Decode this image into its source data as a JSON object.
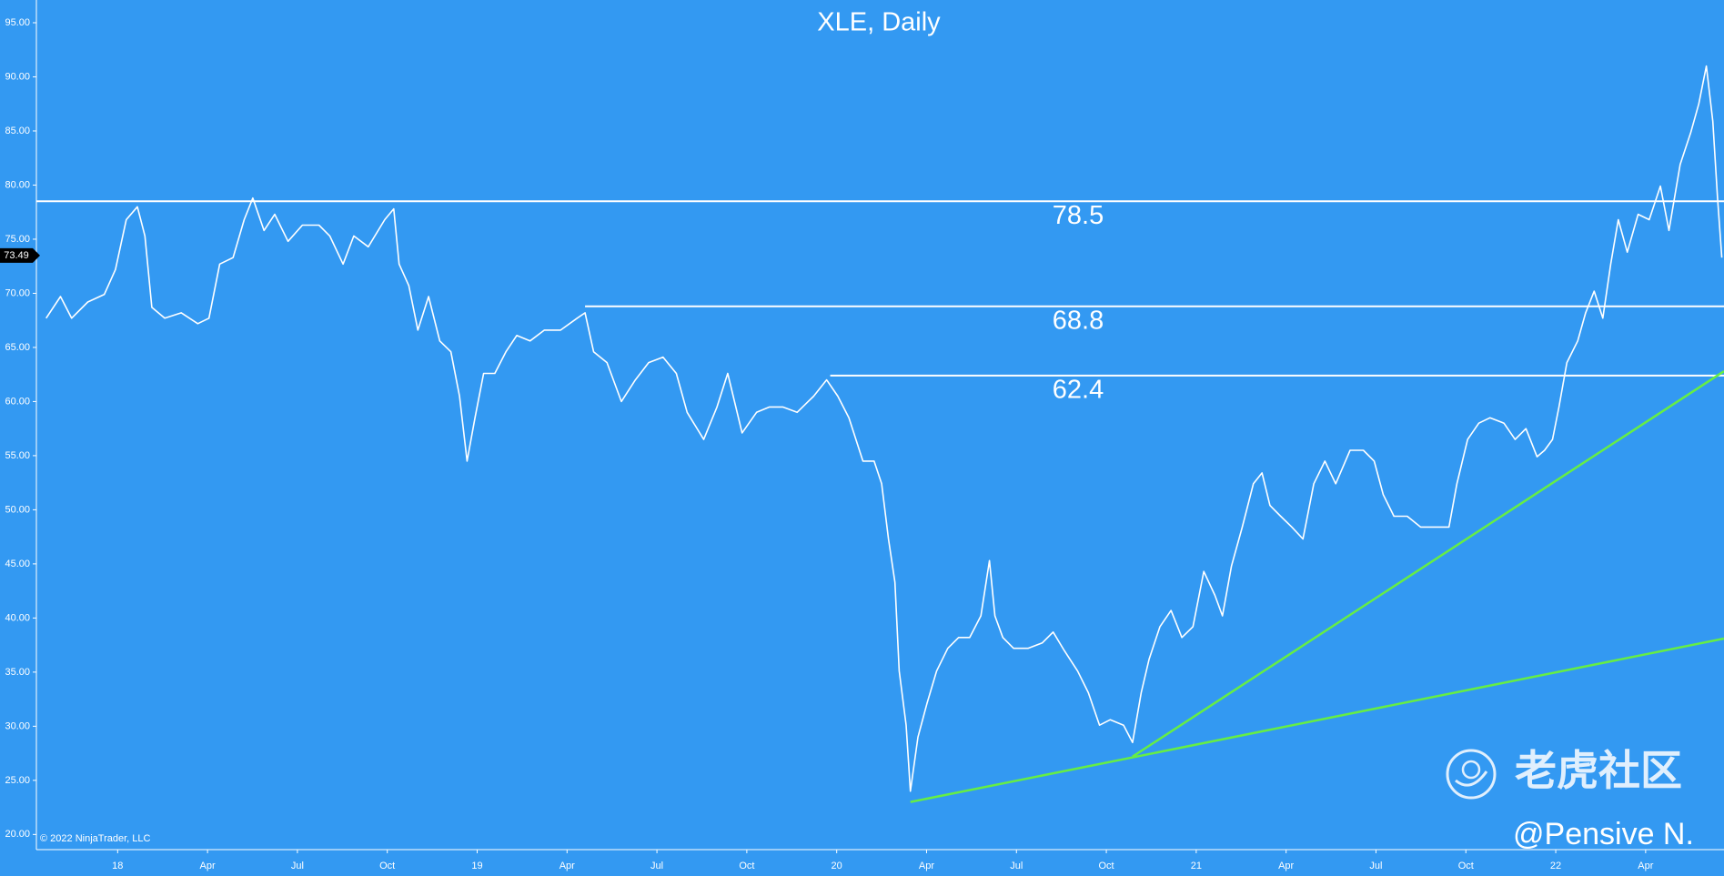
{
  "chart_data": {
    "type": "line",
    "title": "XLE, Daily",
    "color": "#ffffff",
    "x": [
      2017.801,
      2017.841,
      2017.872,
      2017.917,
      2017.963,
      2017.994,
      2018.024,
      2018.055,
      2018.076,
      2018.095,
      2018.131,
      2018.177,
      2018.223,
      2018.254,
      2018.284,
      2018.321,
      2018.352,
      2018.376,
      2018.407,
      2018.437,
      2018.474,
      2018.514,
      2018.56,
      2018.59,
      2018.627,
      2018.657,
      2018.697,
      2018.743,
      2018.768,
      2018.783,
      2018.81,
      2018.835,
      2018.865,
      2018.896,
      2018.927,
      2018.951,
      2018.972,
      2018.994,
      2019.018,
      2019.049,
      2019.08,
      2019.11,
      2019.147,
      2019.187,
      2019.232,
      2019.278,
      2019.3,
      2019.324,
      2019.361,
      2019.401,
      2019.44,
      2019.477,
      2019.517,
      2019.554,
      2019.584,
      2019.63,
      2019.667,
      2019.697,
      2019.737,
      2019.777,
      2019.813,
      2019.85,
      2019.89,
      2019.936,
      2019.972,
      2020.003,
      2020.034,
      2020.073,
      2020.104,
      2020.125,
      2020.144,
      2020.162,
      2020.174,
      2020.193,
      2020.205,
      2020.226,
      2020.251,
      2020.278,
      2020.309,
      2020.339,
      2020.37,
      2020.401,
      2020.425,
      2020.44,
      2020.462,
      2020.492,
      2020.532,
      2020.572,
      2020.602,
      2020.633,
      2020.67,
      2020.7,
      2020.731,
      2020.761,
      2020.798,
      2020.823,
      2020.847,
      2020.869,
      2020.899,
      2020.93,
      2020.96,
      2020.991,
      2021.021,
      2021.052,
      2021.073,
      2021.098,
      2021.128,
      2021.159,
      2021.183,
      2021.205,
      2021.235,
      2021.266,
      2021.297,
      2021.327,
      2021.358,
      2021.388,
      2021.428,
      2021.465,
      2021.495,
      2021.52,
      2021.55,
      2021.587,
      2021.624,
      2021.664,
      2021.703,
      2021.725,
      2021.755,
      2021.786,
      2021.817,
      2021.856,
      2021.887,
      2021.917,
      2021.948,
      2021.969,
      2021.991,
      2022.009,
      2022.031,
      2022.061,
      2022.083,
      2022.107,
      2022.131,
      2022.153,
      2022.174,
      2022.199,
      2022.229,
      2022.26,
      2022.291,
      2022.315,
      2022.346,
      2022.376,
      2022.398,
      2022.419,
      2022.437,
      2022.45,
      2022.462
    ],
    "values": [
      67.7,
      69.7,
      67.7,
      69.2,
      69.9,
      72.2,
      76.8,
      78.0,
      75.3,
      68.7,
      67.7,
      68.2,
      67.2,
      67.7,
      72.7,
      73.3,
      76.8,
      78.8,
      75.8,
      77.3,
      74.8,
      76.3,
      76.3,
      75.3,
      72.7,
      75.3,
      74.3,
      76.8,
      77.8,
      72.7,
      70.7,
      66.6,
      69.7,
      65.6,
      64.6,
      60.5,
      54.5,
      58.5,
      62.6,
      62.6,
      64.6,
      66.1,
      65.6,
      66.6,
      66.6,
      67.7,
      68.2,
      64.6,
      63.6,
      60.0,
      62.0,
      63.6,
      64.1,
      62.6,
      59.0,
      56.5,
      59.5,
      62.6,
      57.1,
      59.0,
      59.5,
      59.5,
      59.0,
      60.5,
      62.0,
      60.5,
      58.5,
      54.5,
      54.5,
      52.4,
      47.3,
      43.3,
      35.1,
      30.1,
      24.0,
      29.0,
      32.1,
      35.1,
      37.2,
      38.2,
      38.2,
      40.2,
      45.3,
      40.2,
      38.2,
      37.2,
      37.2,
      37.7,
      38.7,
      37.0,
      35.1,
      33.1,
      30.1,
      30.6,
      30.1,
      28.5,
      33.1,
      36.2,
      39.2,
      40.7,
      38.2,
      39.2,
      44.3,
      42.1,
      40.2,
      44.8,
      48.4,
      52.4,
      53.4,
      50.4,
      49.4,
      48.4,
      47.3,
      52.4,
      54.5,
      52.4,
      55.5,
      55.5,
      54.5,
      51.4,
      49.4,
      49.4,
      48.4,
      48.4,
      48.4,
      52.4,
      56.5,
      58.0,
      58.5,
      58.0,
      56.5,
      57.5,
      54.9,
      55.5,
      56.5,
      59.5,
      63.6,
      65.6,
      68.2,
      70.2,
      67.7,
      72.7,
      76.8,
      73.8,
      77.3,
      76.8,
      79.9,
      75.8,
      81.9,
      84.9,
      87.5,
      91.0,
      85.9,
      78.8,
      73.3
    ],
    "xlim": [
      2017.774,
      2022.468
    ],
    "ylim": [
      18.6,
      97.1
    ],
    "xticks": [
      {
        "value": 2018,
        "label": "18"
      },
      {
        "value": 2018.25,
        "label": "Apr"
      },
      {
        "value": 2018.5,
        "label": "Jul"
      },
      {
        "value": 2018.75,
        "label": "Oct"
      },
      {
        "value": 2019,
        "label": "19"
      },
      {
        "value": 2019.25,
        "label": "Apr"
      },
      {
        "value": 2019.5,
        "label": "Jul"
      },
      {
        "value": 2019.75,
        "label": "Oct"
      },
      {
        "value": 2020,
        "label": "20"
      },
      {
        "value": 2020.25,
        "label": "Apr"
      },
      {
        "value": 2020.5,
        "label": "Jul"
      },
      {
        "value": 2020.75,
        "label": "Oct"
      },
      {
        "value": 2021,
        "label": "21"
      },
      {
        "value": 2021.25,
        "label": "Apr"
      },
      {
        "value": 2021.5,
        "label": "Jul"
      },
      {
        "value": 2021.75,
        "label": "Oct"
      },
      {
        "value": 2022,
        "label": "22"
      },
      {
        "value": 2022.25,
        "label": "Apr"
      }
    ],
    "yticks": [
      {
        "value": 20,
        "label": "20.00"
      },
      {
        "value": 25,
        "label": "25.00"
      },
      {
        "value": 30,
        "label": "30.00"
      },
      {
        "value": 35,
        "label": "35.00"
      },
      {
        "value": 40,
        "label": "40.00"
      },
      {
        "value": 45,
        "label": "45.00"
      },
      {
        "value": 50,
        "label": "50.00"
      },
      {
        "value": 55,
        "label": "55.00"
      },
      {
        "value": 60,
        "label": "60.00"
      },
      {
        "value": 65,
        "label": "65.00"
      },
      {
        "value": 70,
        "label": "70.00"
      },
      {
        "value": 75,
        "label": "75.00"
      },
      {
        "value": 80,
        "label": "80.00"
      },
      {
        "value": 85,
        "label": "85.00"
      },
      {
        "value": 90,
        "label": "90.00"
      },
      {
        "value": 95,
        "label": "95.00"
      }
    ],
    "last_price": 73.49,
    "hlines": [
      {
        "value": 78.5
      },
      {
        "value": 68.8,
        "x_start": 2019.3
      },
      {
        "value": 62.4,
        "x_start": 2019.982
      }
    ],
    "trendlines": [
      {
        "x": [
          2020.205,
          2022.468
        ],
        "y": [
          23.0,
          38.1
        ],
        "color": "#66ee44"
      },
      {
        "x": [
          2020.823,
          2022.468
        ],
        "y": [
          27.2,
          62.8
        ],
        "color": "#66ee44"
      }
    ],
    "copyright": "© 2022 NinjaTrader, LLC",
    "watermark": "老虎社区",
    "author": "@Pensive N."
  }
}
